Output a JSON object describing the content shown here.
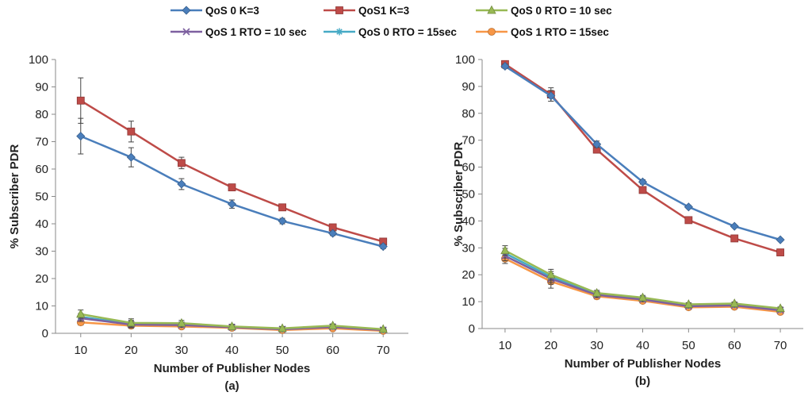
{
  "legend": [
    "QoS 0 K=3",
    "QoS1 K=3",
    "QoS 0 RTO = 10 sec",
    "QoS 1 RTO = 10 sec",
    "QoS 0 RTO = 15sec",
    "QoS 1 RTO = 15sec"
  ],
  "colors": {
    "qos0_k3": "#4a7ebb",
    "qos1_k3": "#be4b48",
    "qos0_rto10": "#98b954",
    "qos1_rto10": "#7d60a0",
    "qos0_rto15": "#46aac5",
    "qos1_rto15": "#f79646"
  },
  "chart_data": [
    {
      "type": "line",
      "subtitle": "(a)",
      "xlabel": "Number of Publisher Nodes",
      "ylabel": "% Subscriber PDR",
      "ylim": [
        0,
        100
      ],
      "yticks": [
        0,
        10,
        20,
        30,
        40,
        50,
        60,
        70,
        80,
        90,
        100
      ],
      "x": [
        10,
        20,
        30,
        40,
        50,
        60,
        70
      ],
      "series": [
        {
          "name": "QoS 0 K=3",
          "key": "qos0_k3",
          "marker": "diamond",
          "values": [
            72,
            64.3,
            54.5,
            47.2,
            41,
            36.5,
            31.7
          ],
          "err": [
            6.5,
            3.5,
            2,
            1.5,
            1,
            0.8,
            0.8
          ]
        },
        {
          "name": "QoS1 K=3",
          "key": "qos1_k3",
          "marker": "square",
          "values": [
            85,
            73.7,
            62.2,
            53.3,
            46,
            38.7,
            33.5
          ],
          "err": [
            8.3,
            3.8,
            2.1,
            1,
            0.8,
            0.8,
            0.8
          ]
        },
        {
          "name": "QoS 0 RTO = 10 sec",
          "key": "qos0_rto10",
          "marker": "triangle",
          "values": [
            7,
            3.8,
            3.7,
            2.5,
            1.8,
            2.8,
            1.5
          ],
          "err": [
            1.5,
            1.5,
            1,
            0.8,
            0.6,
            0.6,
            0.5
          ]
        },
        {
          "name": "QoS 1 RTO = 10 sec",
          "key": "qos1_rto10",
          "marker": "x",
          "values": [
            5.5,
            3.2,
            3,
            2.2,
            1.5,
            2.3,
            1.2
          ],
          "err": [
            1.2,
            1.2,
            0.8,
            0.6,
            0.5,
            0.5,
            0.4
          ]
        },
        {
          "name": "QoS 0 RTO = 15sec",
          "key": "qos0_rto15",
          "marker": "star",
          "values": [
            6,
            3.5,
            3.2,
            2.3,
            1.6,
            2.5,
            1.3
          ],
          "err": [
            1.2,
            1.2,
            0.8,
            0.6,
            0.5,
            0.5,
            0.4
          ]
        },
        {
          "name": "QoS 1 RTO = 15sec",
          "key": "qos1_rto15",
          "marker": "circle",
          "values": [
            4,
            2.8,
            2.5,
            2,
            1.2,
            1.8,
            0.9
          ],
          "err": [
            1,
            1,
            0.8,
            0.6,
            0.5,
            0.5,
            0.4
          ]
        }
      ]
    },
    {
      "type": "line",
      "subtitle": "(b)",
      "xlabel": "Number of Publisher Nodes",
      "ylabel": "% Subscriber PDR",
      "ylim": [
        0,
        100
      ],
      "yticks": [
        0,
        10,
        20,
        30,
        40,
        50,
        60,
        70,
        80,
        90,
        100
      ],
      "x": [
        10,
        20,
        30,
        40,
        50,
        60,
        70
      ],
      "series": [
        {
          "name": "QoS 0 K=3",
          "key": "qos0_k3",
          "marker": "diamond",
          "values": [
            97.5,
            86.5,
            68.5,
            54.5,
            45.2,
            38,
            33
          ],
          "err": [
            0.8,
            2,
            1.2,
            0.8,
            0.6,
            0.5,
            0.5
          ]
        },
        {
          "name": "QoS1 K=3",
          "key": "qos1_k3",
          "marker": "square",
          "values": [
            98.3,
            87,
            66.5,
            51.5,
            40.3,
            33.5,
            28.3
          ],
          "err": [
            0.8,
            2.5,
            1.2,
            0.8,
            0.6,
            0.5,
            0.5
          ]
        },
        {
          "name": "QoS 0 RTO = 10 sec",
          "key": "qos0_rto10",
          "marker": "triangle",
          "values": [
            29,
            20,
            13.2,
            11.5,
            9,
            9.3,
            7.5
          ],
          "err": [
            1.8,
            2,
            1,
            0.8,
            0.6,
            0.6,
            0.5
          ]
        },
        {
          "name": "QoS 1 RTO = 10 sec",
          "key": "qos1_rto10",
          "marker": "x",
          "values": [
            27,
            18.5,
            12.5,
            10.8,
            8.3,
            8.6,
            6.8
          ],
          "err": [
            1.8,
            2,
            1,
            0.8,
            0.6,
            0.6,
            0.5
          ]
        },
        {
          "name": "QoS 0 RTO = 15sec",
          "key": "qos0_rto15",
          "marker": "star",
          "values": [
            28,
            19.2,
            12.8,
            11.1,
            8.6,
            8.9,
            7.1
          ],
          "err": [
            1.8,
            2,
            1,
            0.8,
            0.6,
            0.6,
            0.5
          ]
        },
        {
          "name": "QoS 1 RTO = 15sec",
          "key": "qos1_rto15",
          "marker": "circle",
          "values": [
            26,
            17.5,
            12,
            10.3,
            7.9,
            8.1,
            6.2
          ],
          "err": [
            1.8,
            2.5,
            1,
            0.8,
            0.6,
            0.6,
            0.5
          ]
        }
      ]
    }
  ]
}
